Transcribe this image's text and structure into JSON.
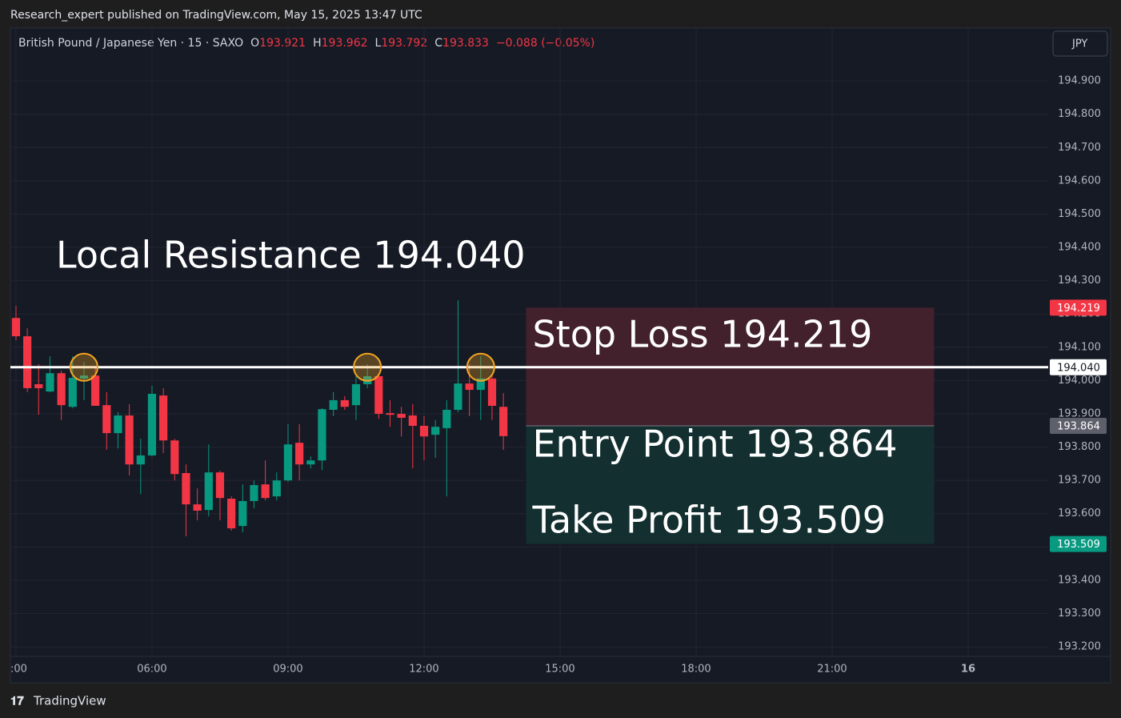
{
  "header": {
    "title": "Research_expert published on TradingView.com, May 15, 2025 13:47 UTC",
    "logo": "TradingView"
  },
  "chart_data": {
    "type": "candlestick",
    "symbol": "British Pound / Japanese Yen · 15 · SAXO",
    "ohlc_labels": [
      "O",
      "H",
      "L",
      "C"
    ],
    "change": "−0.088 (−0.05%)",
    "currency": "JPY",
    "x": [
      3,
      3.25,
      3.5,
      3.75,
      4,
      4.25,
      4.5,
      4.75,
      5,
      5.25,
      5.5,
      5.75,
      6,
      6.25,
      6.5,
      6.75,
      7,
      7.25,
      7.5,
      7.75,
      8,
      8.25,
      8.5,
      8.75,
      9,
      9.25,
      9.5,
      9.75,
      10,
      10.25,
      10.5,
      10.75,
      11,
      11.25,
      11.5,
      11.75,
      12,
      12.25,
      12.5,
      12.75,
      13,
      13.25,
      13.5,
      13.75
    ],
    "open": [
      194.188,
      194.133,
      193.989,
      193.967,
      194.022,
      193.921,
      194.006,
      194.015,
      193.926,
      193.842,
      193.895,
      193.748,
      193.775,
      193.955,
      193.82,
      193.722,
      193.628,
      193.611,
      193.724,
      193.645,
      193.563,
      193.638,
      193.688,
      193.652,
      193.7,
      193.813,
      193.748,
      193.76,
      193.912,
      193.941,
      193.926,
      193.989,
      194.013,
      193.902,
      193.9,
      193.895,
      193.864,
      193.837,
      193.857,
      193.912,
      193.991,
      193.972,
      194.006,
      193.921
    ],
    "high": [
      194.224,
      194.157,
      194.049,
      194.073,
      194.03,
      194.073,
      194.056,
      194.037,
      193.965,
      193.905,
      193.929,
      193.825,
      193.984,
      193.977,
      193.825,
      193.748,
      193.676,
      193.808,
      193.729,
      193.652,
      193.688,
      193.7,
      193.76,
      193.724,
      193.869,
      193.869,
      193.772,
      193.917,
      193.965,
      193.953,
      194.013,
      194.049,
      194.018,
      193.941,
      193.921,
      193.929,
      193.893,
      193.881,
      193.941,
      194.241,
      194.049,
      194.073,
      194.018,
      193.962
    ],
    "low": [
      194.121,
      193.965,
      193.897,
      193.965,
      193.881,
      193.917,
      193.941,
      193.926,
      193.792,
      193.796,
      193.715,
      193.659,
      193.772,
      193.782,
      193.7,
      193.532,
      193.58,
      193.592,
      193.58,
      193.549,
      193.544,
      193.616,
      193.64,
      193.64,
      193.695,
      193.7,
      193.736,
      193.731,
      193.893,
      193.912,
      193.881,
      193.977,
      193.885,
      193.861,
      193.832,
      193.736,
      193.76,
      193.768,
      193.652,
      193.905,
      193.893,
      193.881,
      193.881,
      193.792
    ],
    "close": [
      194.133,
      193.977,
      193.977,
      194.022,
      193.926,
      194.008,
      194.015,
      193.924,
      193.842,
      193.895,
      193.748,
      193.775,
      193.96,
      193.82,
      193.719,
      193.628,
      193.609,
      193.724,
      193.647,
      193.556,
      193.638,
      193.686,
      193.647,
      193.7,
      193.808,
      193.748,
      193.76,
      193.914,
      193.941,
      193.921,
      193.989,
      194.013,
      193.9,
      193.897,
      193.888,
      193.864,
      193.832,
      193.861,
      193.912,
      193.991,
      193.972,
      194.006,
      193.924,
      193.833
    ],
    "up_color": "#089981",
    "down_color": "#f23645",
    "xlim": [
      2.877,
      25.765
    ],
    "xticks": [
      {
        "value": 3,
        "label": ":00"
      },
      {
        "value": 6,
        "label": "06:00"
      },
      {
        "value": 9,
        "label": "09:00"
      },
      {
        "value": 12,
        "label": "12:00"
      },
      {
        "value": 15,
        "label": "15:00"
      },
      {
        "value": 18,
        "label": "18:00"
      },
      {
        "value": 21,
        "label": "21:00"
      },
      {
        "value": 24,
        "label": "16"
      }
    ],
    "ylim": [
      193.092,
      195.059
    ],
    "yticks": [
      {
        "value": 194.9,
        "label": "194.900"
      },
      {
        "value": 194.8,
        "label": "194.800"
      },
      {
        "value": 194.7,
        "label": "194.700"
      },
      {
        "value": 194.6,
        "label": "194.600"
      },
      {
        "value": 194.5,
        "label": "194.500"
      },
      {
        "value": 194.4,
        "label": "194.400"
      },
      {
        "value": 194.3,
        "label": "194.300"
      },
      {
        "value": 194.2,
        "label": "194.200"
      },
      {
        "value": 194.1,
        "label": "194.100"
      },
      {
        "value": 194.0,
        "label": "194.000"
      },
      {
        "value": 193.9,
        "label": "193.900"
      },
      {
        "value": 193.8,
        "label": "193.800"
      },
      {
        "value": 193.7,
        "label": "193.700"
      },
      {
        "value": 193.6,
        "label": "193.600"
      },
      {
        "value": 193.5,
        "label": "193.500"
      },
      {
        "value": 193.4,
        "label": "193.400"
      },
      {
        "value": 193.3,
        "label": "193.300"
      },
      {
        "value": 193.2,
        "label": "193.200"
      }
    ],
    "grid": true,
    "resistance": {
      "value": 194.04,
      "label": "194.040",
      "text": "Local Resistance 194.040",
      "touches": [
        4.5,
        10.75,
        13.25
      ]
    },
    "zones": {
      "x": [
        14.25,
        23.25
      ],
      "stop": {
        "value": 194.219,
        "label": "194.219",
        "text": "Stop Loss 194.219"
      },
      "entry": {
        "value": 193.864,
        "label": "193.864",
        "text": "Entry Point 193.864"
      },
      "target": {
        "value": 193.509,
        "label": "193.509",
        "text": "Take Profit 193.509"
      }
    }
  }
}
